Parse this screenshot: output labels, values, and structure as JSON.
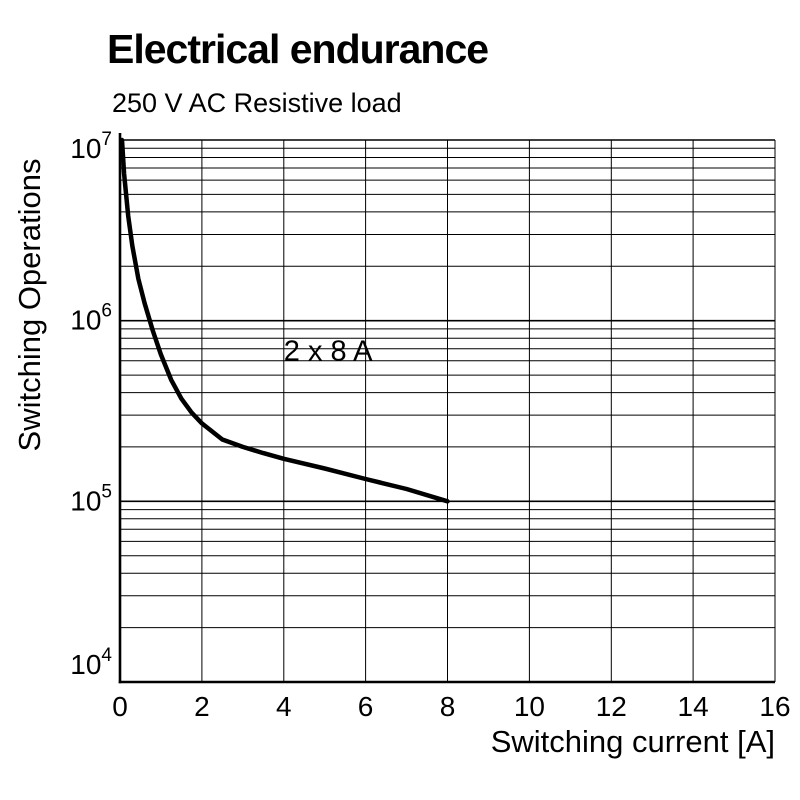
{
  "chart_data": {
    "type": "line",
    "title": "Electrical endurance",
    "subtitle": "250 V AC Resistive load",
    "xlabel": "Switching current [A]",
    "ylabel": "Switching Operations",
    "x_range": [
      0,
      16
    ],
    "x_ticks": [
      0,
      2,
      4,
      6,
      8,
      10,
      12,
      14,
      16
    ],
    "y_scale": "log",
    "y_range": [
      10000,
      10000000
    ],
    "y_ticks": [
      {
        "mantissa": "10",
        "exponent": "4"
      },
      {
        "mantissa": "10",
        "exponent": "5"
      },
      {
        "mantissa": "10",
        "exponent": "6"
      },
      {
        "mantissa": "10",
        "exponent": "7"
      }
    ],
    "grid": true,
    "legend_position": "none",
    "series": [
      {
        "name": "2 x 8 A",
        "points": [
          [
            0.05,
            10000000
          ],
          [
            0.1,
            6500000
          ],
          [
            0.2,
            3800000
          ],
          [
            0.3,
            2600000
          ],
          [
            0.45,
            1700000
          ],
          [
            0.6,
            1250000
          ],
          [
            0.8,
            880000
          ],
          [
            1.0,
            650000
          ],
          [
            1.25,
            470000
          ],
          [
            1.5,
            370000
          ],
          [
            1.75,
            310000
          ],
          [
            2.0,
            270000
          ],
          [
            2.5,
            220000
          ],
          [
            3.0,
            200000
          ],
          [
            3.5,
            185000
          ],
          [
            4.0,
            172000
          ],
          [
            5.0,
            152000
          ],
          [
            6.0,
            133000
          ],
          [
            7.0,
            117000
          ],
          [
            8.0,
            100000
          ]
        ]
      }
    ],
    "annotation": {
      "text": "2 x 8 A",
      "x": 4.0,
      "y": 600000
    },
    "colors": {
      "curve": "#000000",
      "grid": "#000000",
      "background": "#ffffff"
    }
  }
}
